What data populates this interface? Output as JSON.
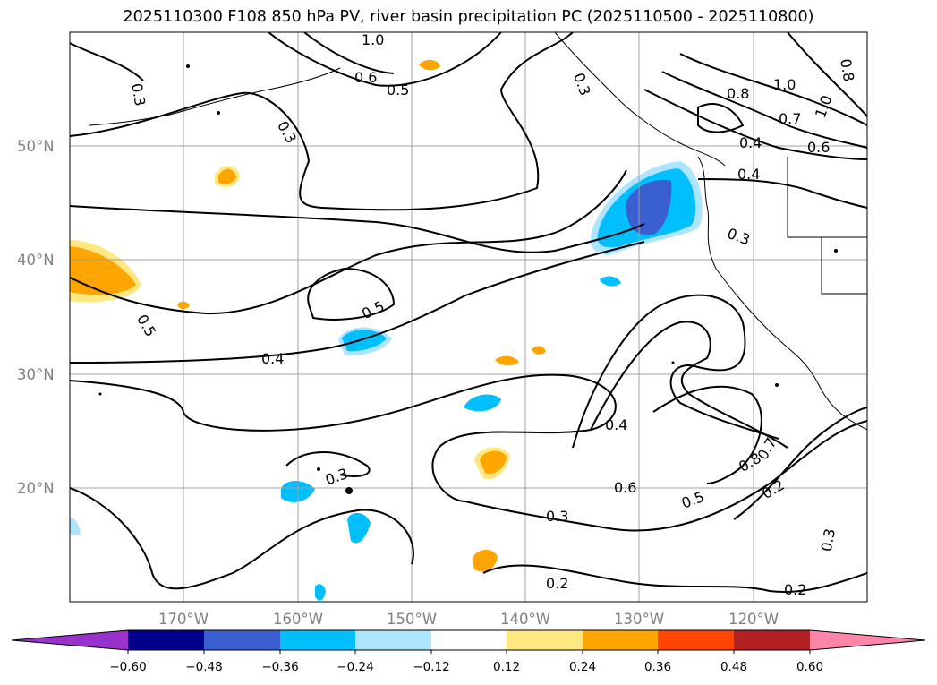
{
  "title": "2025110300 F108 850 hPa PV, river basin precipitation PC (2025110500 - 2025110800)",
  "colors": {
    "grid": "#a0a0a0",
    "tick_label": "#808080",
    "land": "#ffffff",
    "contour": "#000000",
    "positive_light": "#ffe882",
    "positive_mid": "#ffa500",
    "negative_light": "#ade4ff",
    "negative_mid": "#00bfff",
    "negative_dark": "#3a5fd0"
  },
  "map": {
    "lat_labels": [
      "50°N",
      "40°N",
      "30°N",
      "20°N"
    ],
    "lon_labels": [
      "170°W",
      "160°W",
      "150°W",
      "140°W",
      "130°W",
      "120°W"
    ],
    "contour_labels": [
      "1.0",
      "0.6",
      "0.5",
      "0.3",
      "0.3",
      "0.3",
      "0.8",
      "1.0",
      "1.0",
      "0.8",
      "0.7",
      "0.6",
      "0.4",
      "0.4",
      "0.3",
      "0.5",
      "0.5",
      "0.4",
      "0.4",
      "0.3",
      "0.6",
      "0.5",
      "0.3",
      "0.8",
      "0.7",
      "0.2",
      "0.3",
      "0.2",
      "0.2"
    ]
  },
  "colorbar": {
    "colors": [
      "#9932cc",
      "#00008b",
      "#3a5fd0",
      "#00bfff",
      "#ade4ff",
      "#ffffff",
      "#ffe882",
      "#ffa500",
      "#ff4500",
      "#b22222",
      "#ff85a9"
    ],
    "tick_labels": [
      "−0.60",
      "−0.48",
      "−0.36",
      "−0.24",
      "−0.12",
      "0.12",
      "0.24",
      "0.36",
      "0.48",
      "0.60"
    ]
  }
}
